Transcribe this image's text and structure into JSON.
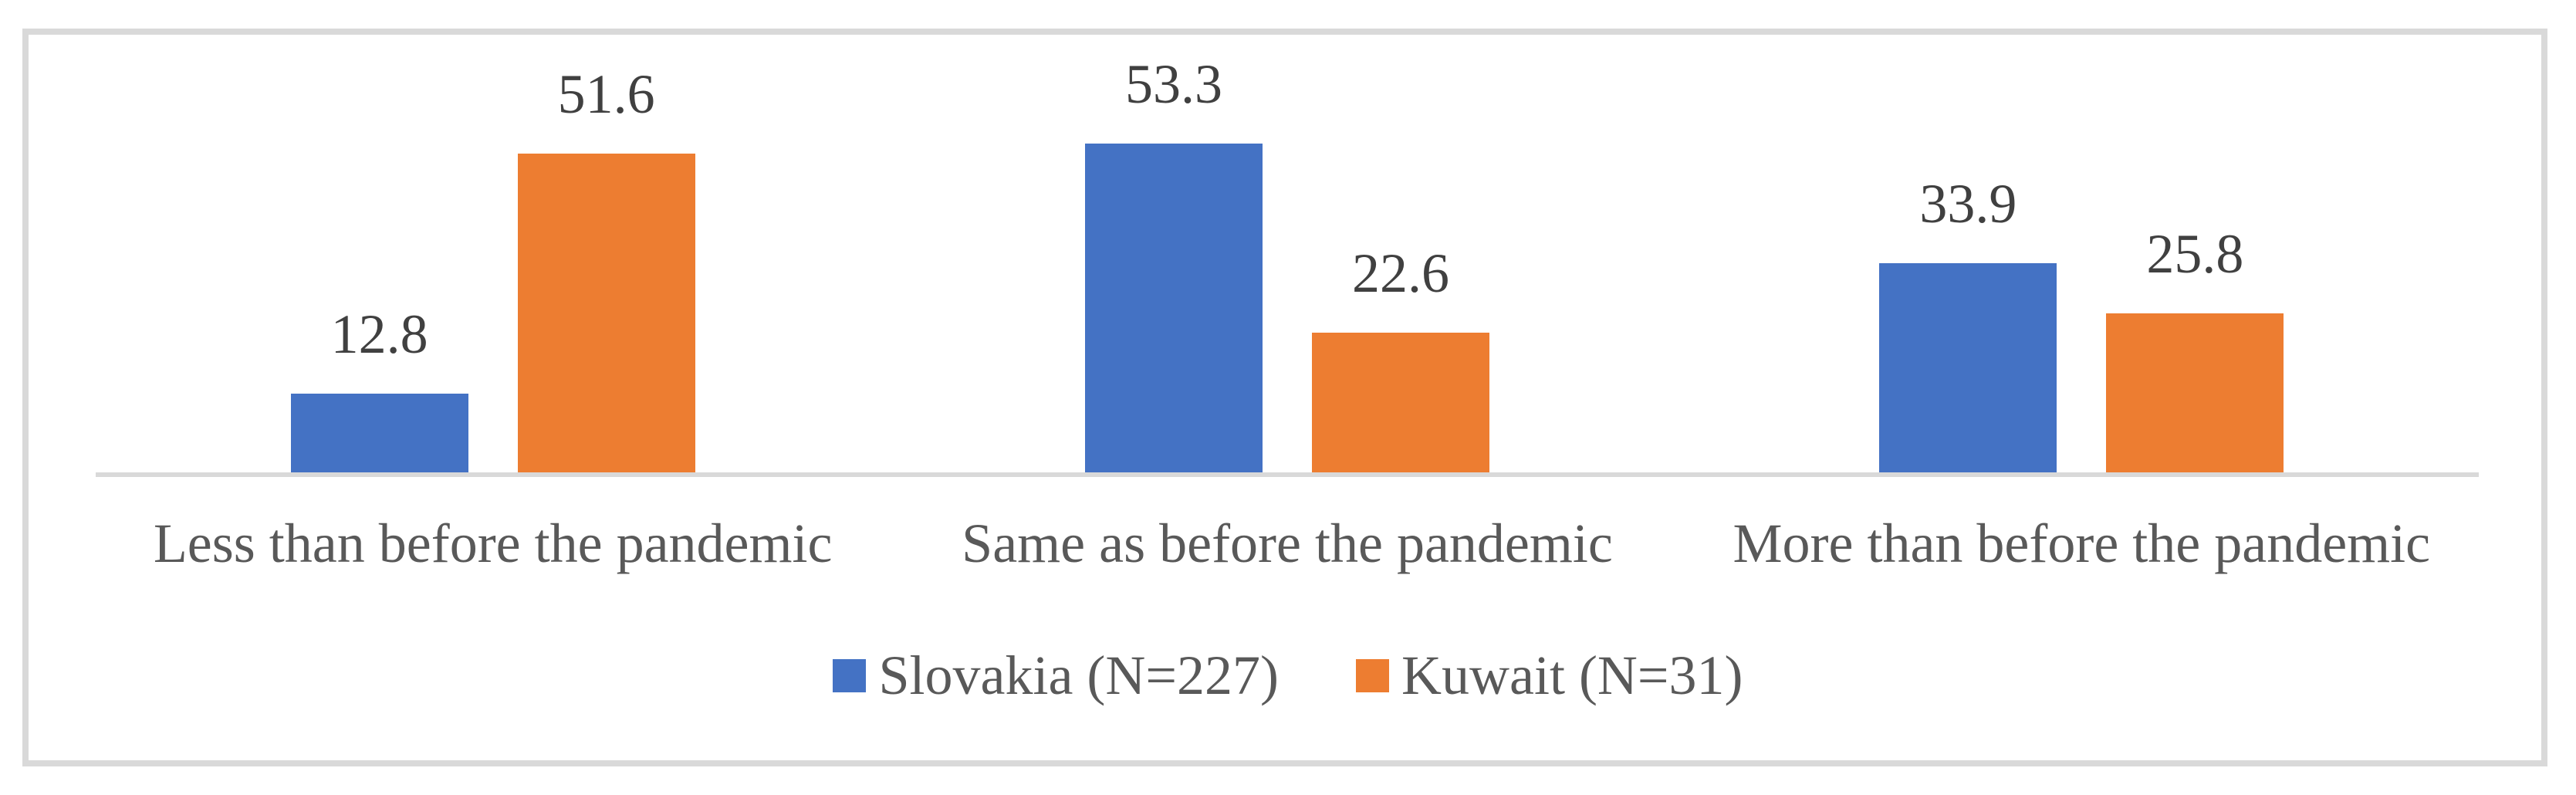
{
  "chart_data": {
    "type": "bar",
    "categories": [
      "Less than before the pandemic",
      "Same as before the pandemic",
      "More than before the pandemic"
    ],
    "series": [
      {
        "name": "Slovakia (N=227)",
        "color": "#4472C4",
        "values": [
          12.8,
          53.3,
          33.9
        ]
      },
      {
        "name": "Kuwait (N=31)",
        "color": "#ED7D31",
        "values": [
          51.6,
          22.6,
          25.8
        ]
      }
    ],
    "title": "",
    "xlabel": "",
    "ylabel": "",
    "ylim": [
      0,
      60
    ],
    "grid": false,
    "value_labels": true,
    "value_label_decimals": 1,
    "legend_position": "bottom"
  },
  "colors": {
    "frame_border": "#D9D9D9",
    "axis_line": "#D9D9D9",
    "category_text": "#595959",
    "value_text": "#404040",
    "legend_text": "#595959"
  }
}
